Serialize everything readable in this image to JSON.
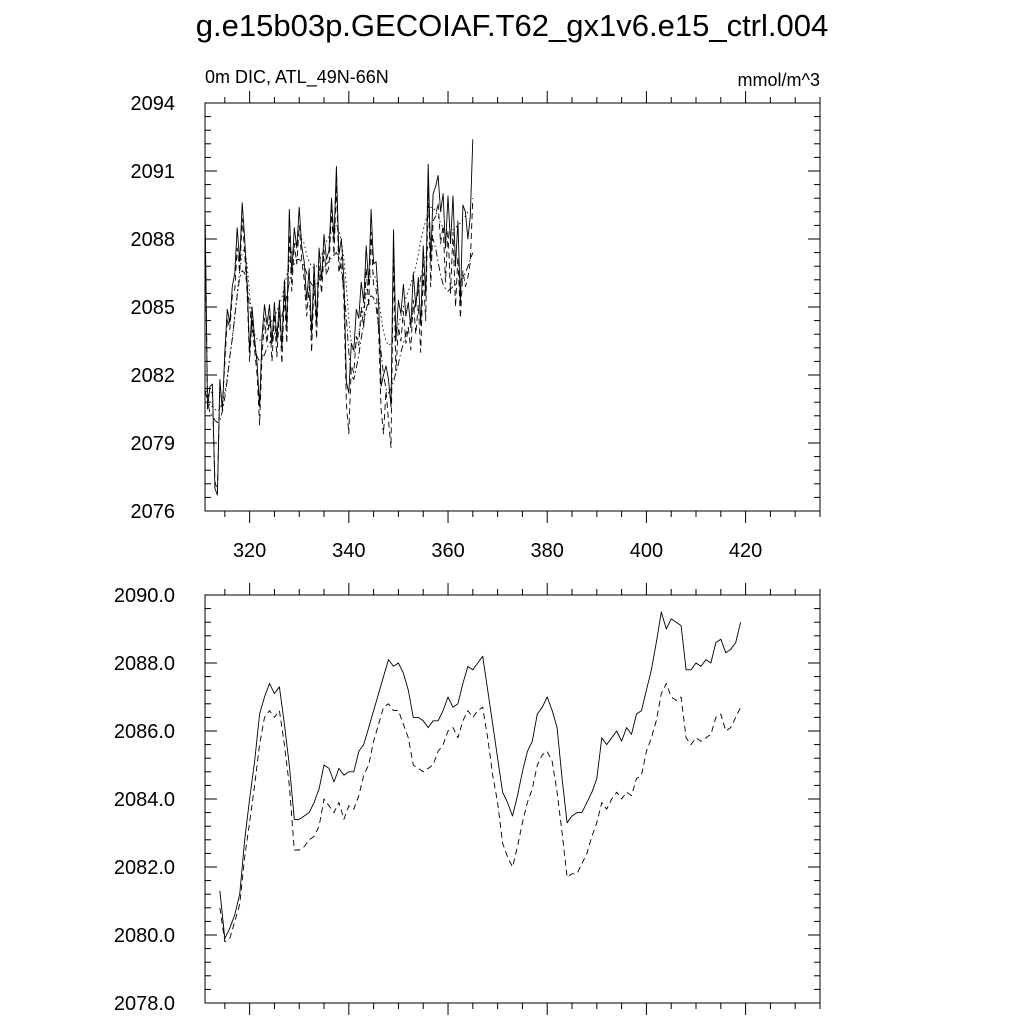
{
  "figure": {
    "title": "g.e15b03p.GECOIAF.T62_gx1v6.e15_ctrl.004"
  },
  "chart_data": [
    {
      "type": "line",
      "subtitle_left": "0m DIC, ATL_49N-66N",
      "subtitle_right": "mmol/m^3",
      "xlim": [
        311,
        435
      ],
      "ylim": [
        2076,
        2094
      ],
      "xticks": [
        320,
        340,
        360,
        380,
        400,
        420
      ],
      "xtick_labels": [
        "320",
        "340",
        "360",
        "380",
        "400",
        "420"
      ],
      "yticks": [
        2076,
        2079,
        2082,
        2085,
        2088,
        2091,
        2094
      ],
      "ytick_labels": [
        "2076",
        "2079",
        "2082",
        "2085",
        "2088",
        "2091",
        "2094"
      ],
      "grid": false,
      "x_start": 311,
      "x_step": 0.5,
      "series": [
        {
          "style": "solid",
          "values": [
            2089.5,
            2080.5,
            2081.5,
            2081.6,
            2077.0,
            2076.7,
            2081.8,
            2080.4,
            2083.0,
            2084.9,
            2084.3,
            2085.9,
            2086.5,
            2088.5,
            2087.0,
            2089.6,
            2088.0,
            2086.0,
            2083.0,
            2085.0,
            2083.6,
            2082.5,
            2080.6,
            2083.7,
            2085.1,
            2084.2,
            2085.1,
            2083.4,
            2085.2,
            2083.5,
            2085.3,
            2083.2,
            2086.2,
            2084.1,
            2089.3,
            2086.5,
            2088.5,
            2087.6,
            2089.4,
            2087.7,
            2087.0,
            2085.3,
            2086.7,
            2083.8,
            2086.9,
            2084.3,
            2087.6,
            2086.2,
            2088.2,
            2087.1,
            2087.5,
            2089.8,
            2088.0,
            2091.2,
            2087.3,
            2088.0,
            2086.2,
            2081.7,
            2081.2,
            2083.4,
            2083.1,
            2084.9,
            2084.5,
            2086.1,
            2085.2,
            2087.7,
            2086.0,
            2089.3,
            2086.9,
            2087.0,
            2085.2,
            2081.5,
            2082.0,
            2082.4,
            2081.8,
            2080.6,
            2088.4,
            2083.5,
            2085.3,
            2084.7,
            2086.0,
            2084.6,
            2085.2,
            2084.1,
            2086.5,
            2085.0,
            2086.3,
            2084.2,
            2087.7,
            2085.5,
            2091.3,
            2087.0,
            2090.0,
            2090.3,
            2090.8,
            2089.2,
            2090.0,
            2087.6,
            2089.9,
            2087.8,
            2089.9,
            2086.8,
            2088.8,
            2085.1,
            2089.5,
            2089.2,
            2088.0,
            2089.0,
            2092.4
          ]
        },
        {
          "style": "dashed",
          "values": [
            2089.0,
            2081.0,
            2081.3,
            2081.2,
            2077.3,
            2076.9,
            2081.5,
            2080.7,
            2082.5,
            2084.5,
            2084.0,
            2085.5,
            2085.8,
            2087.6,
            2086.5,
            2088.9,
            2087.4,
            2085.5,
            2082.6,
            2084.5,
            2083.1,
            2082.0,
            2079.8,
            2082.8,
            2084.5,
            2083.4,
            2084.6,
            2082.6,
            2084.7,
            2082.8,
            2084.8,
            2082.5,
            2085.6,
            2083.4,
            2088.2,
            2085.7,
            2087.8,
            2086.9,
            2088.6,
            2087.1,
            2086.2,
            2084.6,
            2085.9,
            2083.0,
            2086.2,
            2083.6,
            2086.8,
            2085.6,
            2087.5,
            2086.4,
            2086.8,
            2089.3,
            2087.3,
            2090.4,
            2086.5,
            2087.2,
            2085.3,
            2080.7,
            2079.4,
            2082.4,
            2082.1,
            2083.7,
            2083.3,
            2085.0,
            2084.1,
            2086.7,
            2085.0,
            2088.3,
            2085.9,
            2085.8,
            2084.0,
            2080.5,
            2079.4,
            2081.3,
            2080.0,
            2078.8,
            2087.1,
            2082.2,
            2084.1,
            2083.5,
            2084.8,
            2083.4,
            2084.1,
            2083.1,
            2085.3,
            2083.8,
            2085.1,
            2083.0,
            2086.5,
            2084.4,
            2090.3,
            2085.9,
            2088.8,
            2089.0,
            2089.6,
            2087.8,
            2088.6,
            2086.1,
            2088.4,
            2085.6,
            2088.3,
            2085.0,
            2087.2,
            2084.5,
            2086.6,
            2085.9,
            2086.3,
            2087.0,
            2089.8
          ]
        },
        {
          "style": "dotted",
          "values": [
            2081.5,
            2081.0,
            2080.6,
            2080.6,
            2080.5,
            2080.4,
            2080.5,
            2080.8,
            2081.2,
            2081.9,
            2082.8,
            2083.6,
            2084.6,
            2085.6,
            2086.6,
            2087.4,
            2087.6,
            2086.8,
            2085.6,
            2084.5,
            2083.8,
            2083.6,
            2083.5,
            2083.7,
            2083.8,
            2084.0,
            2084.2,
            2084.4,
            2084.6,
            2084.8,
            2085.1,
            2085.4,
            2085.9,
            2086.4,
            2087.0,
            2087.4,
            2087.7,
            2087.9,
            2088.0,
            2088.0,
            2087.8,
            2087.3,
            2087.0,
            2086.8,
            2086.7,
            2086.8,
            2087.0,
            2087.3,
            2087.6,
            2087.9,
            2088.1,
            2088.3,
            2088.5,
            2088.6,
            2088.4,
            2087.9,
            2087.1,
            2085.9,
            2084.5,
            2083.4,
            2083.0,
            2083.3,
            2083.8,
            2084.4,
            2085.0,
            2085.6,
            2086.1,
            2086.4,
            2086.5,
            2086.2,
            2085.4,
            2084.6,
            2083.9,
            2083.5,
            2083.3,
            2083.4,
            2083.6,
            2083.9,
            2084.2,
            2084.6,
            2085.0,
            2085.4,
            2085.7,
            2086.0,
            2086.4,
            2086.8,
            2087.3,
            2087.9,
            2088.4,
            2088.8,
            2089.2,
            2089.4,
            2089.4,
            2089.2,
            2089.0,
            2088.7,
            2088.5,
            2088.3,
            2088.2,
            2088.3,
            2088.4,
            2088.5,
            2088.6,
            2088.7,
            2088.9,
            2089.0,
            2089.2,
            2089.3,
            2089.5
          ]
        },
        {
          "style": "dashdot",
          "values": [
            2081.3,
            2080.9,
            2080.3,
            2080.2,
            2080.0,
            2079.9,
            2080.0,
            2080.4,
            2081.0,
            2081.8,
            2082.8,
            2083.6,
            2084.6,
            2085.5,
            2086.3,
            2086.6,
            2086.5,
            2086.0,
            2085.0,
            2084.0,
            2083.2,
            2082.8,
            2082.6,
            2082.7,
            2082.9,
            2083.2,
            2083.4,
            2083.6,
            2083.8,
            2084.0,
            2084.3,
            2084.6,
            2085.0,
            2085.5,
            2086.1,
            2086.6,
            2086.9,
            2087.1,
            2087.1,
            2087.0,
            2086.8,
            2086.5,
            2086.2,
            2086.0,
            2085.9,
            2086.0,
            2086.2,
            2086.5,
            2086.7,
            2086.9,
            2087.0,
            2087.2,
            2087.3,
            2087.4,
            2087.2,
            2086.6,
            2085.8,
            2084.5,
            2083.0,
            2082.0,
            2081.8,
            2082.3,
            2082.9,
            2083.6,
            2084.3,
            2084.9,
            2085.3,
            2085.5,
            2085.4,
            2085.0,
            2084.1,
            2083.0,
            2082.0,
            2081.4,
            2081.2,
            2081.4,
            2081.7,
            2082.1,
            2082.5,
            2083.0,
            2083.4,
            2083.8,
            2084.1,
            2084.4,
            2084.8,
            2085.2,
            2085.7,
            2086.3,
            2086.8,
            2087.3,
            2087.7,
            2088.0,
            2088.0,
            2087.6,
            2087.0,
            2086.4,
            2086.0,
            2085.8,
            2085.7,
            2085.8,
            2085.9,
            2086.0,
            2086.0,
            2086.1,
            2086.3,
            2086.5,
            2086.8,
            2087.1,
            2087.4
          ]
        }
      ]
    },
    {
      "type": "line",
      "xlim": [
        311,
        435
      ],
      "ylim": [
        2078,
        2090
      ],
      "xticks": [
        320,
        340,
        360,
        380,
        400,
        420
      ],
      "yticks": [
        2078,
        2080,
        2082,
        2084,
        2086,
        2088,
        2090
      ],
      "ytick_labels": [
        "2078.0",
        "2080.0",
        "2082.0",
        "2084.0",
        "2086.0",
        "2088.0",
        "2090.0"
      ],
      "grid": false,
      "x_start": 314,
      "x_step": 1,
      "series": [
        {
          "style": "solid",
          "values": [
            2081.3,
            2079.9,
            2080.2,
            2080.6,
            2081.2,
            2082.8,
            2084.0,
            2085.1,
            2086.5,
            2087.0,
            2087.4,
            2087.1,
            2087.3,
            2086.2,
            2085.0,
            2083.4,
            2083.4,
            2083.5,
            2083.6,
            2083.9,
            2084.3,
            2085.0,
            2084.9,
            2084.5,
            2084.9,
            2084.7,
            2084.8,
            2084.8,
            2085.4,
            2085.6,
            2086.1,
            2086.6,
            2087.1,
            2087.6,
            2088.1,
            2087.9,
            2088.0,
            2087.7,
            2087.2,
            2086.4,
            2086.4,
            2086.3,
            2086.1,
            2086.3,
            2086.3,
            2086.6,
            2087.0,
            2086.7,
            2086.8,
            2087.4,
            2087.9,
            2087.8,
            2088.0,
            2088.2,
            2087.2,
            2086.2,
            2085.2,
            2084.2,
            2083.9,
            2083.5,
            2084.1,
            2084.8,
            2085.4,
            2085.7,
            2086.5,
            2086.7,
            2087.0,
            2086.6,
            2086.1,
            2084.6,
            2083.3,
            2083.5,
            2083.6,
            2083.6,
            2083.9,
            2084.2,
            2084.6,
            2085.8,
            2085.6,
            2085.8,
            2086.0,
            2085.7,
            2086.1,
            2085.9,
            2086.5,
            2086.6,
            2087.2,
            2087.8,
            2088.6,
            2089.5,
            2089.0,
            2089.3,
            2089.2,
            2089.1,
            2087.8,
            2087.8,
            2088.0,
            2087.9,
            2088.1,
            2088.0,
            2088.6,
            2088.7,
            2088.3,
            2088.4,
            2088.6,
            2089.2
          ]
        },
        {
          "style": "dashed",
          "values": [
            2080.8,
            2079.8,
            2079.9,
            2080.4,
            2080.9,
            2082.3,
            2083.3,
            2084.4,
            2085.6,
            2086.4,
            2086.6,
            2086.4,
            2086.6,
            2085.6,
            2084.4,
            2082.5,
            2082.5,
            2082.6,
            2082.8,
            2082.9,
            2083.2,
            2084.0,
            2083.8,
            2083.6,
            2083.9,
            2083.4,
            2083.8,
            2083.7,
            2084.1,
            2084.7,
            2085.0,
            2085.7,
            2086.2,
            2086.7,
            2086.8,
            2086.6,
            2086.6,
            2086.2,
            2085.8,
            2085.0,
            2084.9,
            2084.8,
            2084.9,
            2085.0,
            2085.4,
            2085.6,
            2086.0,
            2086.1,
            2085.8,
            2086.3,
            2086.6,
            2086.4,
            2086.6,
            2086.7,
            2085.8,
            2084.7,
            2083.9,
            2082.7,
            2082.3,
            2082.0,
            2082.6,
            2083.3,
            2083.9,
            2084.3,
            2085.0,
            2085.3,
            2085.4,
            2085.1,
            2084.2,
            2083.0,
            2081.7,
            2081.8,
            2081.8,
            2082.1,
            2082.4,
            2082.9,
            2083.3,
            2083.9,
            2083.7,
            2084.0,
            2084.2,
            2084.0,
            2084.2,
            2084.1,
            2084.6,
            2084.7,
            2085.4,
            2085.8,
            2086.3,
            2087.1,
            2087.4,
            2087.0,
            2086.9,
            2087.0,
            2085.8,
            2085.6,
            2085.8,
            2085.7,
            2085.8,
            2085.9,
            2086.4,
            2086.5,
            2086.0,
            2086.1,
            2086.4,
            2086.7
          ]
        }
      ]
    }
  ]
}
